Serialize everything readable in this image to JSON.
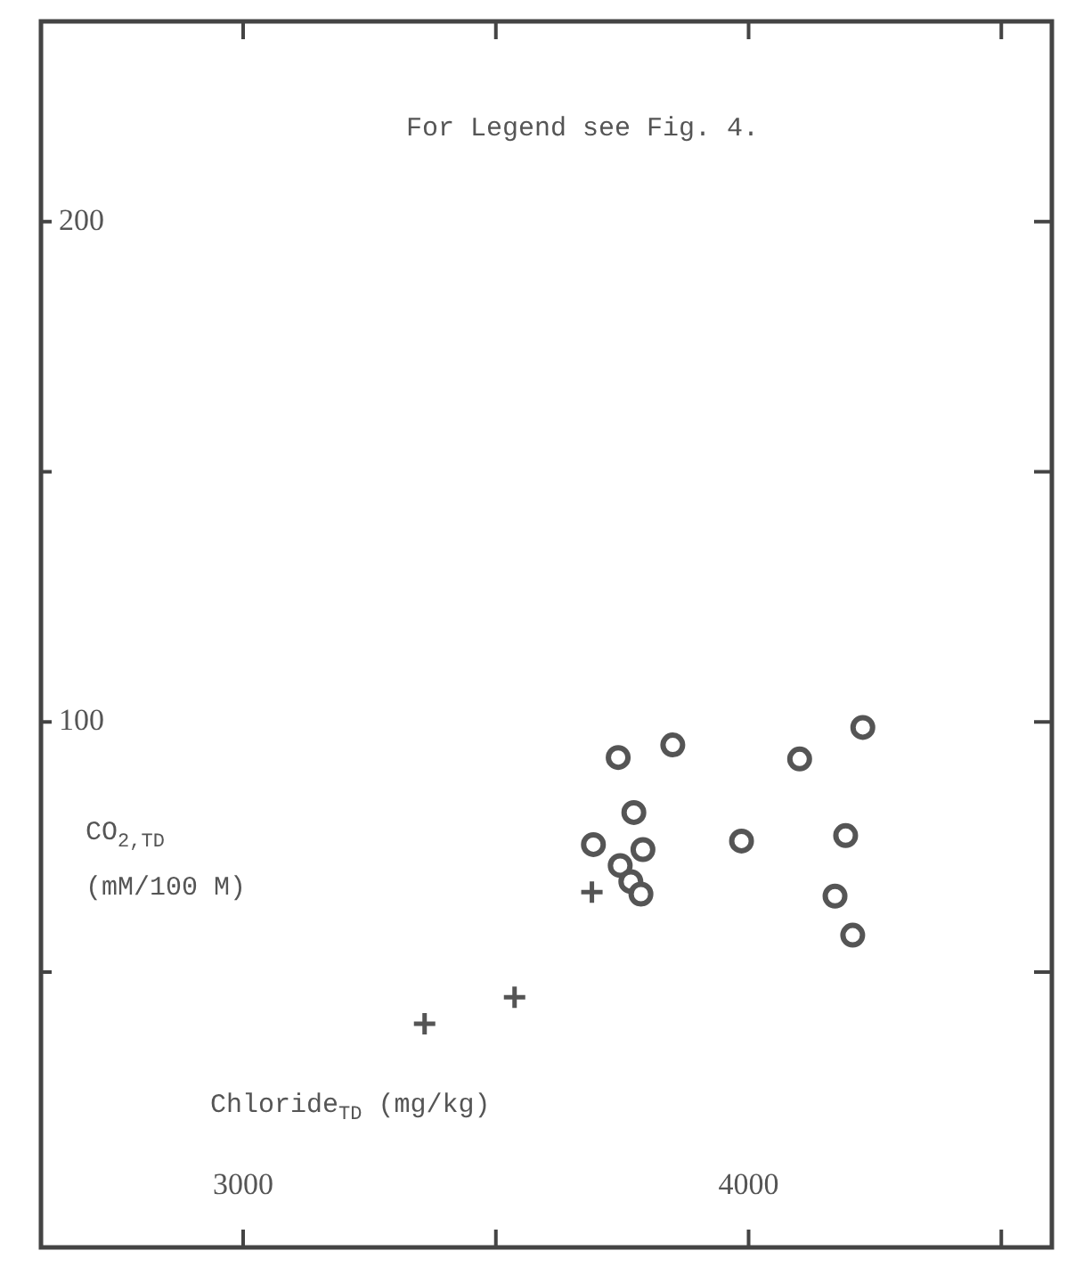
{
  "chart_data": {
    "type": "scatter",
    "xlabel": "Chloride$_{TD}$ (mg/kg)",
    "ylabel": "CO$_{2,TD}$ (mM/100 M)",
    "annotations": [
      "For Legend see Fig. 4."
    ],
    "xlim": [
      2600,
      4600
    ],
    "xticks": [
      3000,
      {
        "value": 3500,
        "label": null
      },
      4000,
      {
        "value": 4500,
        "label": null
      }
    ],
    "ylim": [
      -5,
      240
    ],
    "yticks": [
      {
        "value": 50,
        "label": null
      },
      100,
      {
        "value": 150,
        "label": null
      },
      200
    ],
    "grid": false,
    "legend": false,
    "series": [
      {
        "color": "#555555",
        "marker": "circle",
        "x": [
          3742,
          3850,
          4101,
          4226,
          3773,
          3693,
          3791,
          3986,
          4192,
          3746,
          3767,
          3787,
          4171,
          4206
        ],
        "values": [
          92.9,
          95.4,
          92.6,
          98.9,
          81.9,
          75.5,
          74.5,
          76.2,
          77.3,
          71.3,
          68.1,
          65.6,
          65.2,
          57.4
        ]
      },
      {
        "color": "#555555",
        "marker": "cross",
        "x": [
          3690,
          3537,
          3359
        ],
        "values": [
          66.0,
          45.0,
          39.7
        ]
      }
    ]
  }
}
